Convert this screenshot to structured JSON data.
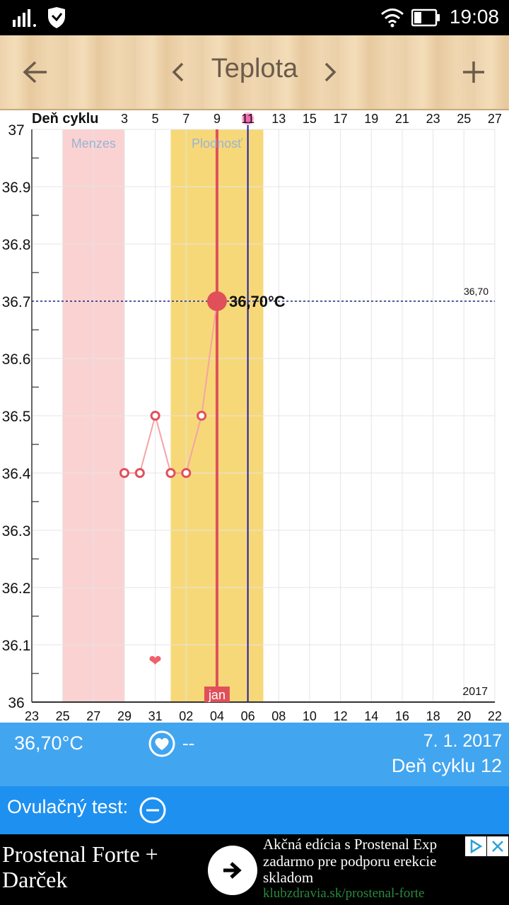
{
  "status_bar": {
    "time": "19:08"
  },
  "app_bar": {
    "title": "Teplota"
  },
  "chart_data": {
    "type": "line",
    "x_axis_top_label": "Deň cyklu",
    "cycle_ticks": [
      "3",
      "5",
      "7",
      "9",
      "11",
      "13",
      "15",
      "17",
      "19",
      "21",
      "23",
      "25",
      "27"
    ],
    "date_ticks": [
      "23",
      "25",
      "27",
      "29",
      "31",
      "02",
      "04",
      "06",
      "08",
      "10",
      "12",
      "14",
      "16",
      "18",
      "20",
      "22"
    ],
    "y_ticks": [
      "37",
      "36.9",
      "36.8",
      "36.7",
      "36.6",
      "36.5",
      "36.4",
      "36.3",
      "36.2",
      "36.1",
      "36"
    ],
    "ylim": [
      36.0,
      37.0
    ],
    "year_label": "2017",
    "month_label": "jan",
    "zones": [
      {
        "label": "Menzes",
        "from_day": 2,
        "to_day": 6,
        "color": "#fbd2d2"
      },
      {
        "label": "Plodnosť",
        "from_day": 9,
        "to_day": 15,
        "color": "#f7d878"
      }
    ],
    "points": [
      {
        "day": 6,
        "date": "1. 1.",
        "value": 36.4
      },
      {
        "day": 7,
        "date": "2. 1.",
        "value": 36.4
      },
      {
        "day": 8,
        "date": "3. 1.",
        "value": 36.5
      },
      {
        "day": 9,
        "date": "4. 1.",
        "value": 36.4
      },
      {
        "day": 10,
        "date": "5. 1.",
        "value": 36.4
      },
      {
        "day": 11,
        "date": "6. 1.",
        "value": 36.5
      },
      {
        "day": 12,
        "date": "7. 1.",
        "value": 36.7
      }
    ],
    "selected_day": 12,
    "selected_label": "36,70°C",
    "reference_line": {
      "value": 36.7,
      "label": "36,70"
    },
    "today_day": 14,
    "heart_day": 8,
    "grid": true
  },
  "info": {
    "temperature": "36,70°C",
    "intercourse": "--",
    "date": "7. 1. 2017",
    "cycle_day": "Deň cyklu 12"
  },
  "ovulation": {
    "label": "Ovulačný test:"
  },
  "ad": {
    "title": "Prostenal Forte + Darček",
    "text1": "Akčná edícia s Prostenal Exp",
    "text2": "zadarmo pre podporu erekcie",
    "text3": "skladom",
    "url": "klubzdravia.sk/prostenal-forte"
  }
}
